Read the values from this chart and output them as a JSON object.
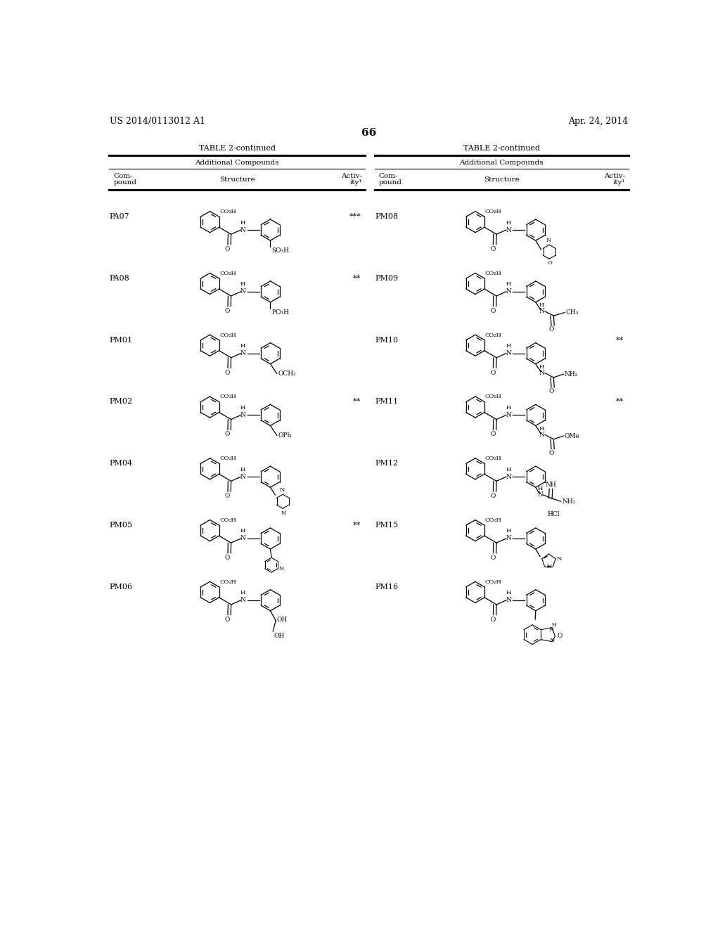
{
  "page_header_left": "US 2014/0113012 A1",
  "page_header_right": "Apr. 24, 2014",
  "page_number": "66",
  "table_title": "TABLE 2-continued",
  "table_subtitle": "Additional Compounds",
  "left_compounds": [
    {
      "id": "PA07",
      "activity": "***"
    },
    {
      "id": "PA08",
      "activity": "**"
    },
    {
      "id": "PM01",
      "activity": ""
    },
    {
      "id": "PM02",
      "activity": "**"
    },
    {
      "id": "PM04",
      "activity": ""
    },
    {
      "id": "PM05",
      "activity": "**"
    },
    {
      "id": "PM06",
      "activity": ""
    }
  ],
  "right_compounds": [
    {
      "id": "PM08",
      "activity": ""
    },
    {
      "id": "PM09",
      "activity": ""
    },
    {
      "id": "PM10",
      "activity": "**"
    },
    {
      "id": "PM11",
      "activity": "**"
    },
    {
      "id": "PM12",
      "activity": ""
    },
    {
      "id": "PM15",
      "activity": ""
    },
    {
      "id": "PM16",
      "activity": ""
    }
  ],
  "bg_color": "#ffffff"
}
